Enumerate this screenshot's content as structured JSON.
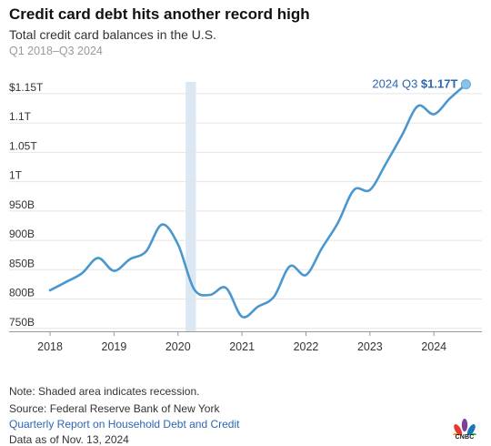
{
  "header": {
    "title": "Credit card debt hits another record high",
    "subtitle": "Total credit card balances in the U.S.",
    "range": "Q1 2018–Q3 2024"
  },
  "chart_data": {
    "type": "line",
    "title": "Credit card debt hits another record high",
    "subtitle": "Total credit card balances in the U.S.",
    "xlabel": "",
    "ylabel": "",
    "y_unit": "billions of dollars",
    "x_quarters": [
      "2018 Q1",
      "2018 Q2",
      "2018 Q3",
      "2018 Q4",
      "2019 Q1",
      "2019 Q2",
      "2019 Q3",
      "2019 Q4",
      "2020 Q1",
      "2020 Q2",
      "2020 Q3",
      "2020 Q4",
      "2021 Q1",
      "2021 Q2",
      "2021 Q3",
      "2021 Q4",
      "2022 Q1",
      "2022 Q2",
      "2022 Q3",
      "2022 Q4",
      "2023 Q1",
      "2023 Q2",
      "2023 Q3",
      "2023 Q4",
      "2024 Q1",
      "2024 Q2",
      "2024 Q3"
    ],
    "values": [
      815,
      829,
      844,
      870,
      848,
      868,
      881,
      927,
      893,
      817,
      807,
      819,
      770,
      787,
      804,
      856,
      841,
      887,
      930,
      986,
      986,
      1031,
      1079,
      1129,
      1115,
      1142,
      1166
    ],
    "x_ticks": [
      "2018",
      "2019",
      "2020",
      "2021",
      "2022",
      "2023",
      "2024"
    ],
    "y_ticks": [
      "750B",
      "800B",
      "850B",
      "900B",
      "950B",
      "1T",
      "1.05T",
      "1.1T",
      "$1.15T"
    ],
    "y_tick_values": [
      750,
      800,
      850,
      900,
      950,
      1000,
      1050,
      1100,
      1150
    ],
    "ylim": [
      745,
      1170
    ],
    "xlim": [
      2017.9,
      2024.75
    ],
    "recession": {
      "start": 2020.12,
      "end": 2020.28
    },
    "annotation": {
      "label": "2024 Q3 ",
      "value_label": "$1.17T"
    },
    "line_color": "#4a97d0",
    "recession_color": "#dbe8f3",
    "grid": true,
    "legend": "none"
  },
  "footer": {
    "note": "Note: Shaded area indicates recession.",
    "source": "Source: Federal Reserve Bank of New York",
    "link": "Quarterly Report on Household Debt and Credit",
    "as_of": "Data as of Nov. 13, 2024"
  },
  "logo": {
    "text": "CNBC",
    "icon": "peacock-icon"
  }
}
